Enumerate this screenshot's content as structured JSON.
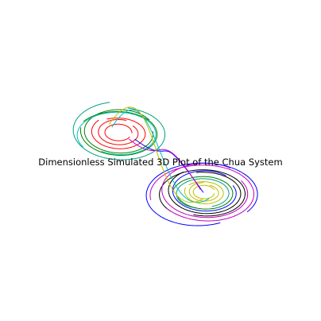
{
  "chart_data": {
    "type": "line",
    "projection": "3d",
    "title": "Dimensionless Simulated 3D Plot of the Chua System",
    "xlabel": "",
    "ylabel": "",
    "axes_visible": false,
    "grid": false,
    "legend": "none",
    "attractor_lobes": [
      {
        "name": "",
        "center": [
          -1.5,
          0.0,
          2.0
        ],
        "loops": [
          {
            "color": "#ff0000",
            "radius": 0.5,
            "tilt": 0.85,
            "phase": 0.0
          },
          {
            "color": "#ff0000",
            "radius": 0.75,
            "tilt": 0.85,
            "phase": 1.2
          },
          {
            "color": "#ff0000",
            "radius": 1.0,
            "tilt": 0.85,
            "phase": 2.4
          },
          {
            "color": "#008000",
            "radius": 1.3,
            "tilt": 0.85,
            "phase": 0.6
          },
          {
            "color": "#008000",
            "radius": 1.42,
            "tilt": 0.85,
            "phase": 3.0
          },
          {
            "color": "#00bfbf",
            "radius": 1.36,
            "tilt": 0.85,
            "phase": 4.2
          },
          {
            "color": "#00a080",
            "radius": 1.72,
            "tilt": 0.85,
            "phase": 1.8
          }
        ]
      },
      {
        "name": "",
        "center": [
          1.5,
          0.0,
          -2.0
        ],
        "loops": [
          {
            "color": "#bfbf00",
            "radius": 0.4,
            "tilt": 0.85,
            "phase": 0.4
          },
          {
            "color": "#bfbf00",
            "radius": 0.55,
            "tilt": 0.85,
            "phase": 1.6
          },
          {
            "color": "#bfbf00",
            "radius": 0.72,
            "tilt": 0.85,
            "phase": 2.8
          },
          {
            "color": "#00a080",
            "radius": 0.9,
            "tilt": 0.85,
            "phase": 5.0
          },
          {
            "color": "#008000",
            "radius": 1.05,
            "tilt": 0.85,
            "phase": 3.5
          },
          {
            "color": "#0000ff",
            "radius": 1.2,
            "tilt": 0.85,
            "phase": 0.9
          },
          {
            "color": "#000000",
            "radius": 1.35,
            "tilt": 0.85,
            "phase": 2.2
          },
          {
            "color": "#000000",
            "radius": 1.48,
            "tilt": 0.85,
            "phase": 4.4
          },
          {
            "color": "#bf00bf",
            "radius": 1.62,
            "tilt": 0.85,
            "phase": 1.0
          },
          {
            "color": "#bf00bf",
            "radius": 1.8,
            "tilt": 0.85,
            "phase": 3.8
          },
          {
            "color": "#0000ff",
            "radius": 1.9,
            "tilt": 0.85,
            "phase": 5.6
          }
        ]
      }
    ],
    "bridges": [
      {
        "color": "#0000ff",
        "from_lobe": 1,
        "to_lobe": 0
      },
      {
        "color": "#bf00bf",
        "from_lobe": 1,
        "to_lobe": 0
      },
      {
        "color": "#00bfbf",
        "from_lobe": 0,
        "to_lobe": 1
      },
      {
        "color": "#bfbf00",
        "from_lobe": 0,
        "to_lobe": 1
      }
    ]
  }
}
